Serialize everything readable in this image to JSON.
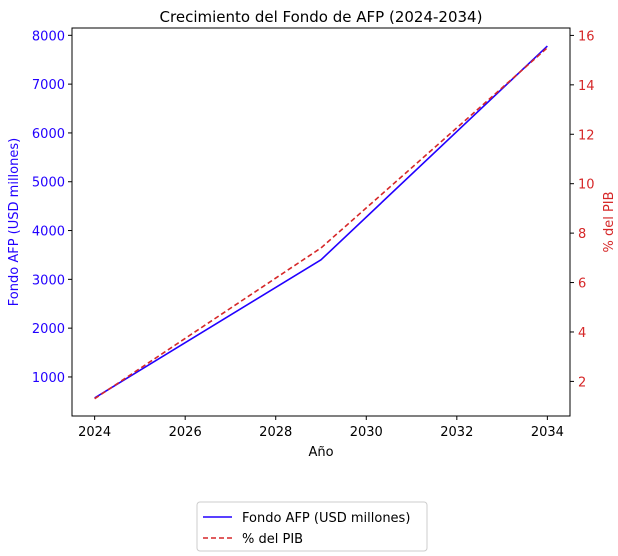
{
  "chart_data": {
    "type": "line",
    "title": "Crecimiento del Fondo de AFP (2024-2034)",
    "xlabel": "Año",
    "ylabel_left": "Fondo AFP (USD millones)",
    "ylabel_right": "% del PIB",
    "x": [
      2024,
      2029,
      2034
    ],
    "xlim": [
      2023.5,
      2034.5
    ],
    "x_ticks": [
      "2024",
      "2026",
      "2028",
      "2030",
      "2032",
      "2034"
    ],
    "ylim_left": [
      200,
      8150
    ],
    "y_ticks_left": [
      "1000",
      "2000",
      "3000",
      "4000",
      "5000",
      "6000",
      "7000",
      "8000"
    ],
    "ylim_right": [
      0.6,
      16.3
    ],
    "y_ticks_right": [
      "2",
      "4",
      "6",
      "8",
      "10",
      "12",
      "14",
      "16"
    ],
    "series": [
      {
        "name": "Fondo AFP (USD millones)",
        "axis": "left",
        "color": "#2200ff",
        "style": "solid",
        "values": [
          570,
          3400,
          7780
        ]
      },
      {
        "name": "% del PIB",
        "axis": "right",
        "color": "#d62728",
        "style": "dashed",
        "values": [
          1.3,
          7.4,
          15.5
        ]
      }
    ],
    "grid": false,
    "legend_position": "bottom-center (below chart)",
    "left_axis_color": "#2200ff",
    "right_axis_color": "#d62728"
  }
}
